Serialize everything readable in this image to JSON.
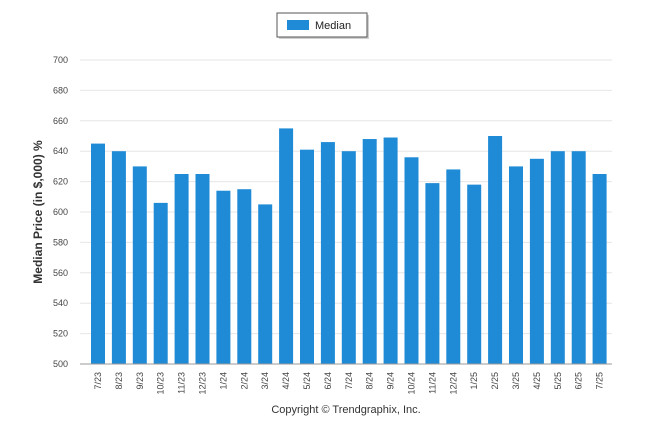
{
  "chart_data": {
    "type": "bar",
    "categories": [
      "7/23",
      "8/23",
      "9/23",
      "10/23",
      "11/23",
      "12/23",
      "1/24",
      "2/24",
      "3/24",
      "4/24",
      "5/24",
      "6/24",
      "7/24",
      "8/24",
      "9/24",
      "10/24",
      "11/24",
      "12/24",
      "1/25",
      "2/25",
      "3/25",
      "4/25",
      "5/25",
      "6/25",
      "7/25"
    ],
    "series": [
      {
        "name": "Median",
        "color": "#1f8bd6",
        "values": [
          645,
          640,
          630,
          606,
          625,
          625,
          614,
          615,
          605,
          655,
          641,
          646,
          640,
          648,
          649,
          636,
          619,
          628,
          618,
          650,
          630,
          635,
          640,
          640,
          625
        ]
      }
    ],
    "ylabel": "Median Price (in $,000) %",
    "ylim": [
      500,
      700
    ],
    "yticks": [
      500,
      520,
      540,
      560,
      580,
      600,
      620,
      640,
      660,
      680,
      700
    ],
    "grid": true,
    "legend_position": "top-center"
  },
  "footer": {
    "copyright": "Copyright © Trendgraphix, Inc."
  }
}
